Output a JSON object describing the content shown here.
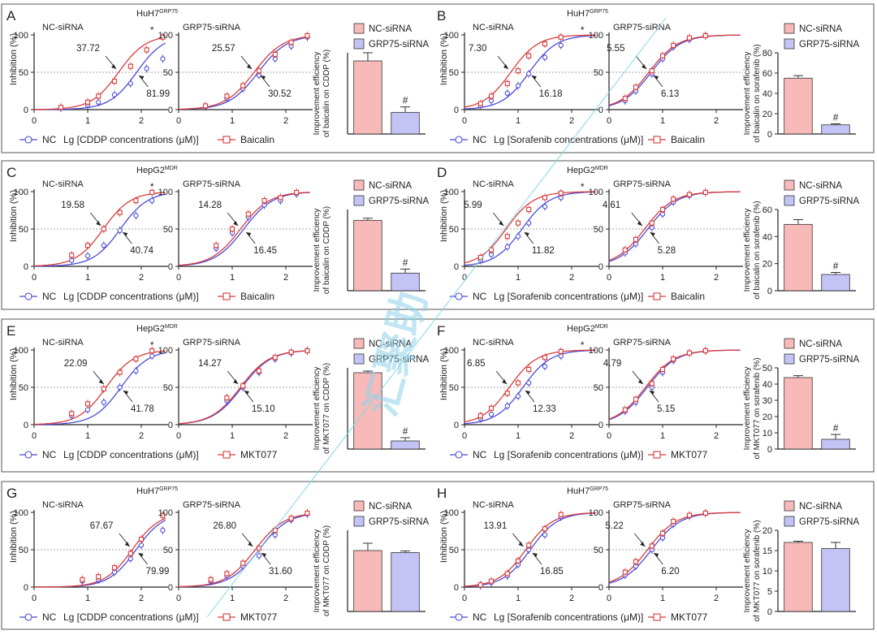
{
  "colors": {
    "nc_curve": "#4a4ad8",
    "treat_curve": "#d83b3b",
    "nc_bar": "#f8b9b9",
    "grp75_bar": "#c3c3f5"
  },
  "common": {
    "y_axis_label": "Inhibition (%)",
    "subtitle_nc": "NC-siRNA",
    "subtitle_grp": "GRP75-siRNA",
    "legend_nc_line": "NC",
    "bar_legend": [
      "NC-siRNA",
      "GRP75-siRNA"
    ],
    "y_ticks_curve": [
      "0",
      "50",
      "100"
    ],
    "significance_star": "*",
    "significance_hash": "#"
  },
  "watermark": "汇聚助",
  "chart_data": [
    {
      "type": "line",
      "panel": "A",
      "cell_line": "HuH7",
      "cell_sup": "GRP75",
      "drug": "CDDP",
      "x_label": "Lg [CDDP concentrations (μM)]",
      "treatment": "Baicalin",
      "x_range": [
        0,
        2.5
      ],
      "x_ticks": [
        "0",
        "1",
        "2"
      ],
      "y_range": [
        0,
        100
      ],
      "nc_siRNA": {
        "ic50_nc": "81.99",
        "ic50_treat": "37.72",
        "logic50_nc": 1.914,
        "logic50_treat": 1.577,
        "star": true,
        "points_x": [
          0.5,
          1.0,
          1.2,
          1.5,
          1.8,
          2.1,
          2.4
        ],
        "nc_y": [
          2,
          6,
          10,
          20,
          35,
          55,
          68
        ],
        "treat_y": [
          3,
          10,
          18,
          38,
          58,
          80,
          97
        ]
      },
      "grp75_siRNA": {
        "ic50_nc": "30.52",
        "ic50_treat": "25.57",
        "logic50_nc": 1.485,
        "logic50_treat": 1.408,
        "points_x": [
          0.5,
          0.9,
          1.2,
          1.5,
          1.8,
          2.1,
          2.4
        ],
        "nc_y": [
          4,
          15,
          28,
          46,
          68,
          85,
          97
        ],
        "treat_y": [
          5,
          18,
          32,
          52,
          74,
          90,
          99
        ]
      },
      "bar": {
        "ylabel": "Improvement efficiency of baicalin on CDDP (%)",
        "values": [
          54,
          16
        ],
        "errors": [
          6,
          4
        ],
        "ylim": [
          0,
          60
        ],
        "ticks": [],
        "hash": true
      }
    },
    {
      "type": "line",
      "panel": "B",
      "cell_line": "HuH7",
      "cell_sup": "GRP75",
      "drug": "Sorafenib",
      "x_label": "Lg [Sorafenib concentrations (μM)]",
      "treatment": "Baicalin",
      "x_range": [
        0,
        2.5
      ],
      "x_ticks": [
        "0",
        "1",
        "2"
      ],
      "y_range": [
        0,
        100
      ],
      "nc_siRNA": {
        "ic50_nc": "16.18",
        "ic50_treat": "7.30",
        "logic50_nc": 1.209,
        "logic50_treat": 0.863,
        "star": true,
        "points_x": [
          0.3,
          0.5,
          0.8,
          1.0,
          1.2,
          1.5,
          1.8
        ],
        "nc_y": [
          5,
          12,
          22,
          32,
          48,
          70,
          86
        ],
        "treat_y": [
          8,
          18,
          35,
          52,
          72,
          88,
          97
        ]
      },
      "grp75_siRNA": {
        "ic50_nc": "6.13",
        "ic50_treat": "5.55",
        "logic50_nc": 0.787,
        "logic50_treat": 0.744,
        "points_x": [
          0.3,
          0.5,
          0.8,
          1.0,
          1.2,
          1.5,
          1.8
        ],
        "nc_y": [
          12,
          25,
          48,
          68,
          84,
          94,
          99
        ],
        "treat_y": [
          15,
          30,
          52,
          72,
          86,
          96,
          99
        ]
      },
      "bar": {
        "ylabel": "Improvement efficiency of baicalin on sorafenib (%)",
        "values": [
          55,
          9
        ],
        "errors": [
          2.5,
          1
        ],
        "ylim": [
          0,
          80
        ],
        "ticks": [
          "0",
          "20",
          "40",
          "60",
          "80"
        ],
        "hash": true
      }
    },
    {
      "type": "line",
      "panel": "C",
      "cell_line": "HepG2",
      "cell_sup": "MDR",
      "drug": "CDDP",
      "x_label": "Lg [CDDP concentrations (μM)]",
      "treatment": "Baicalin",
      "x_range": [
        0,
        2.5
      ],
      "x_ticks": [
        "0",
        "1",
        "2"
      ],
      "y_range": [
        0,
        100
      ],
      "nc_siRNA": {
        "ic50_nc": "40.74",
        "ic50_treat": "19.58",
        "logic50_nc": 1.61,
        "logic50_treat": 1.292,
        "star": true,
        "points_x": [
          0.7,
          1.0,
          1.3,
          1.6,
          1.9,
          2.2
        ],
        "nc_y": [
          8,
          14,
          28,
          48,
          68,
          88
        ],
        "treat_y": [
          15,
          28,
          50,
          72,
          88,
          99
        ]
      },
      "grp75_siRNA": {
        "ic50_nc": "16.45",
        "ic50_treat": "14.28",
        "logic50_nc": 1.216,
        "logic50_treat": 1.155,
        "points_x": [
          0.7,
          1.0,
          1.3,
          1.6,
          1.9,
          2.2
        ],
        "nc_y": [
          24,
          45,
          66,
          82,
          88,
          97
        ],
        "treat_y": [
          28,
          50,
          70,
          88,
          92,
          99
        ]
      },
      "bar": {
        "ylabel": "Improvement efficiency of baicalin on CDDP (%)",
        "values": [
          52,
          13
        ],
        "errors": [
          1.5,
          3
        ],
        "ylim": [
          0,
          60
        ],
        "ticks": [],
        "hash": true
      }
    },
    {
      "type": "line",
      "panel": "D",
      "cell_line": "HepG2",
      "cell_sup": "MDR",
      "drug": "Sorafenib",
      "x_label": "Lg [Sorafenib concentrations (μM)]",
      "treatment": "Baicalin",
      "x_range": [
        0,
        2.5
      ],
      "x_ticks": [
        "0",
        "1",
        "2"
      ],
      "y_range": [
        0,
        100
      ],
      "nc_siRNA": {
        "ic50_nc": "11.82",
        "ic50_treat": "5.99",
        "logic50_nc": 1.073,
        "logic50_treat": 0.777,
        "star": true,
        "points_x": [
          0.3,
          0.5,
          0.8,
          1.0,
          1.2,
          1.5,
          1.8
        ],
        "nc_y": [
          8,
          16,
          26,
          40,
          58,
          80,
          92
        ],
        "treat_y": [
          12,
          22,
          40,
          58,
          76,
          92,
          98
        ]
      },
      "grp75_siRNA": {
        "ic50_nc": "5.28",
        "ic50_treat": "4.61",
        "logic50_nc": 0.723,
        "logic50_treat": 0.664,
        "points_x": [
          0.3,
          0.5,
          0.8,
          1.0,
          1.2,
          1.5,
          1.8
        ],
        "nc_y": [
          18,
          30,
          52,
          70,
          86,
          95,
          99
        ],
        "treat_y": [
          22,
          36,
          58,
          76,
          90,
          96,
          99
        ]
      },
      "bar": {
        "ylabel": "Improvement efficiency of baicalin on sorafenib (%)",
        "values": [
          49,
          12
        ],
        "errors": [
          3.5,
          1.5
        ],
        "ylim": [
          0,
          60
        ],
        "ticks": [
          "0",
          "20",
          "40",
          "60"
        ],
        "hash": true
      }
    },
    {
      "type": "line",
      "panel": "E",
      "cell_line": "HepG2",
      "cell_sup": "MDR",
      "drug": "CDDP",
      "x_label": "Lg [CDDP concentrations (μM)]",
      "treatment": "MKT077",
      "x_range": [
        0,
        2.5
      ],
      "x_ticks": [
        "0",
        "1",
        "2"
      ],
      "y_range": [
        0,
        100
      ],
      "nc_siRNA": {
        "ic50_nc": "41.78",
        "ic50_treat": "22.09",
        "logic50_nc": 1.621,
        "logic50_treat": 1.344,
        "star": true,
        "points_x": [
          0.7,
          1.0,
          1.3,
          1.6,
          1.9,
          2.2
        ],
        "nc_y": [
          12,
          20,
          30,
          50,
          72,
          92
        ],
        "treat_y": [
          15,
          28,
          48,
          70,
          88,
          99
        ]
      },
      "grp75_siRNA": {
        "ic50_nc": "15.10",
        "ic50_treat": "14.27",
        "logic50_nc": 1.179,
        "logic50_treat": 1.154,
        "points_x": [
          0.9,
          1.2,
          1.5,
          1.8,
          2.1,
          2.4
        ],
        "nc_y": [
          32,
          50,
          70,
          88,
          96,
          99
        ],
        "treat_y": [
          36,
          52,
          72,
          90,
          97,
          99
        ]
      },
      "bar": {
        "ylabel": "Improvement efficiency of MKT077 on CDDP (%)",
        "values": [
          47,
          5
        ],
        "errors": [
          1,
          2
        ],
        "ylim": [
          0,
          50
        ],
        "ticks": [],
        "hash": true
      }
    },
    {
      "type": "line",
      "panel": "F",
      "cell_line": "HepG2",
      "cell_sup": "MDR",
      "drug": "Sorafenib",
      "x_label": "Lg [Sorafenib concentrations (μM)]",
      "treatment": "MKT077",
      "x_range": [
        0,
        2.5
      ],
      "x_ticks": [
        "0",
        "1",
        "2"
      ],
      "y_range": [
        0,
        100
      ],
      "nc_siRNA": {
        "ic50_nc": "12.33",
        "ic50_treat": "6.85",
        "logic50_nc": 1.091,
        "logic50_treat": 0.836,
        "star": true,
        "points_x": [
          0.3,
          0.5,
          0.8,
          1.0,
          1.2,
          1.5,
          1.8
        ],
        "nc_y": [
          8,
          14,
          25,
          38,
          56,
          78,
          92
        ],
        "treat_y": [
          12,
          22,
          42,
          56,
          74,
          90,
          98
        ]
      },
      "grp75_siRNA": {
        "ic50_nc": "5.15",
        "ic50_treat": "4.79",
        "logic50_nc": 0.712,
        "logic50_treat": 0.68,
        "points_x": [
          0.3,
          0.5,
          0.8,
          1.0,
          1.2,
          1.5,
          1.8
        ],
        "nc_y": [
          18,
          30,
          50,
          70,
          86,
          96,
          99
        ],
        "treat_y": [
          20,
          34,
          55,
          74,
          88,
          96,
          99
        ]
      },
      "bar": {
        "ylabel": "Improvement efficiency of MKT077 on sorafenib (%)",
        "values": [
          44,
          6
        ],
        "errors": [
          1.2,
          3
        ],
        "ylim": [
          0,
          50
        ],
        "ticks": [
          "0",
          "10",
          "20",
          "30",
          "40",
          "50"
        ],
        "hash": true
      }
    },
    {
      "type": "line",
      "panel": "G",
      "cell_line": "HuH7",
      "cell_sup": "GRP75",
      "drug": "CDDP",
      "x_label": "Lg [CDDP concentrations (μM)]",
      "treatment": "MKT077",
      "x_range": [
        0,
        2.5
      ],
      "x_ticks": [
        "0",
        "1",
        "2"
      ],
      "y_range": [
        0,
        100
      ],
      "nc_siRNA": {
        "ic50_nc": "79.99",
        "ic50_treat": "67.67",
        "logic50_nc": 1.903,
        "logic50_treat": 1.83,
        "star": false,
        "points_x": [
          0.9,
          1.2,
          1.5,
          1.8,
          2.0,
          2.4
        ],
        "nc_y": [
          8,
          10,
          20,
          38,
          56,
          76
        ],
        "treat_y": [
          10,
          14,
          26,
          45,
          64,
          96
        ]
      },
      "grp75_siRNA": {
        "ic50_nc": "31.60",
        "ic50_treat": "26.80",
        "logic50_nc": 1.5,
        "logic50_treat": 1.428,
        "points_x": [
          0.6,
          0.9,
          1.2,
          1.5,
          1.8,
          2.1,
          2.4
        ],
        "nc_y": [
          8,
          15,
          28,
          42,
          70,
          90,
          98
        ],
        "treat_y": [
          10,
          18,
          32,
          52,
          76,
          92,
          99
        ]
      },
      "bar": {
        "ylabel": "Improvement efficiency of MKT077 on CDDP (%)",
        "values": [
          15,
          14.5
        ],
        "errors": [
          1.8,
          0.4
        ],
        "ylim": [
          0,
          20
        ],
        "ticks": [],
        "hash": false
      }
    },
    {
      "type": "line",
      "panel": "H",
      "cell_line": "HuH7",
      "cell_sup": "GRP75",
      "drug": "Sorafenib",
      "x_label": "Lg [Sorafenib concentrations (μM)]",
      "treatment": "MKT077",
      "x_range": [
        0,
        2.5
      ],
      "x_ticks": [
        "0",
        "1",
        "2"
      ],
      "y_range": [
        0,
        100
      ],
      "nc_siRNA": {
        "ic50_nc": "16.85",
        "ic50_treat": "13.91",
        "logic50_nc": 1.227,
        "logic50_treat": 1.143,
        "star": false,
        "points_x": [
          0.3,
          0.5,
          0.8,
          1.0,
          1.2,
          1.5,
          1.8
        ],
        "nc_y": [
          2,
          6,
          15,
          30,
          50,
          70,
          94
        ],
        "treat_y": [
          3,
          8,
          18,
          35,
          56,
          78,
          97
        ]
      },
      "grp75_siRNA": {
        "ic50_nc": "6.20",
        "ic50_treat": "5.22",
        "logic50_nc": 0.792,
        "logic50_treat": 0.718,
        "points_x": [
          0.3,
          0.5,
          0.8,
          1.0,
          1.2,
          1.5,
          1.8
        ],
        "nc_y": [
          16,
          28,
          50,
          66,
          84,
          95,
          99
        ],
        "treat_y": [
          20,
          34,
          55,
          72,
          88,
          96,
          99
        ]
      },
      "bar": {
        "ylabel": "Improvement efficiency of MKT077 on sorafenib (%)",
        "values": [
          17,
          15.5
        ],
        "errors": [
          0.3,
          1.5
        ],
        "ylim": [
          0,
          20
        ],
        "ticks": [
          "0",
          "5",
          "10",
          "15",
          "20"
        ],
        "hash": false
      }
    }
  ]
}
